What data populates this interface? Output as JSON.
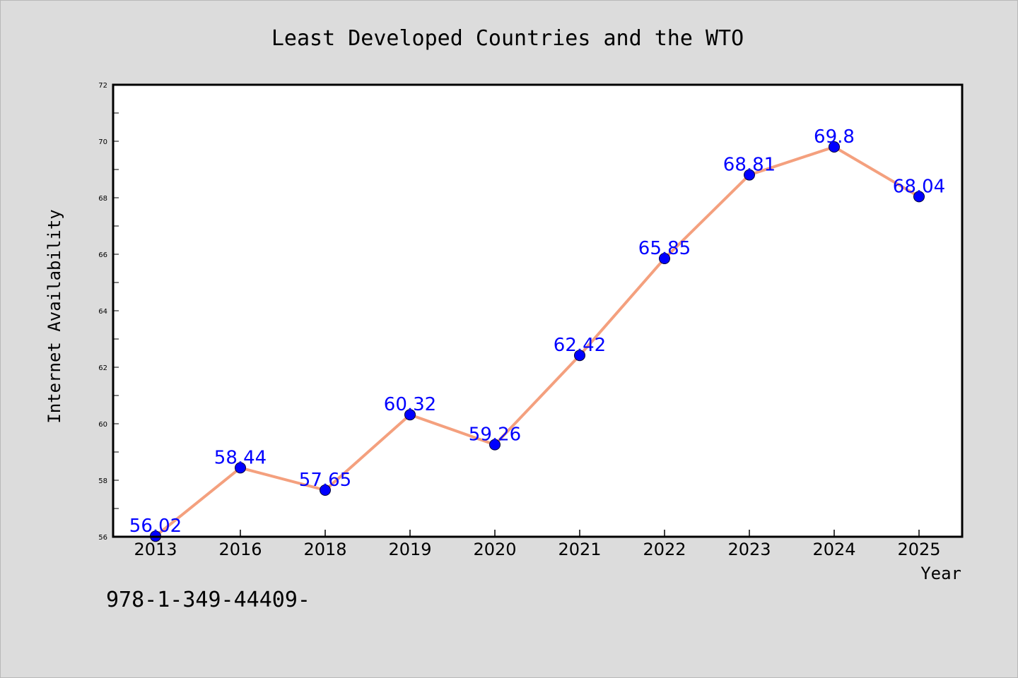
{
  "chart_data": {
    "type": "line",
    "title": "Least Developed Countries and the WTO",
    "xlabel": "Year",
    "ylabel": "Internet Availability",
    "categories": [
      "2013",
      "2016",
      "2018",
      "2019",
      "2020",
      "2021",
      "2022",
      "2023",
      "2024",
      "2025"
    ],
    "series": [
      {
        "values": [
          56.02,
          58.44,
          57.65,
          60.32,
          59.26,
          62.42,
          65.85,
          68.81,
          69.8,
          68.04
        ],
        "labels": [
          "56.02",
          "58.44",
          "57.65",
          "60.32",
          "59.26",
          "62.42",
          "65.85",
          "68.81",
          "69.8",
          "68.04"
        ]
      }
    ],
    "ylim": [
      56,
      72
    ],
    "yticks": [
      56,
      58,
      60,
      62,
      64,
      66,
      68,
      70,
      72
    ],
    "grid": false,
    "colors": {
      "line": "#f4a07e",
      "marker": "#0000ff",
      "data_label": "#0000ff",
      "plot_background": "#ffffff",
      "page_background": "#dcdcdc"
    }
  },
  "footnote": "978-1-349-44409-"
}
